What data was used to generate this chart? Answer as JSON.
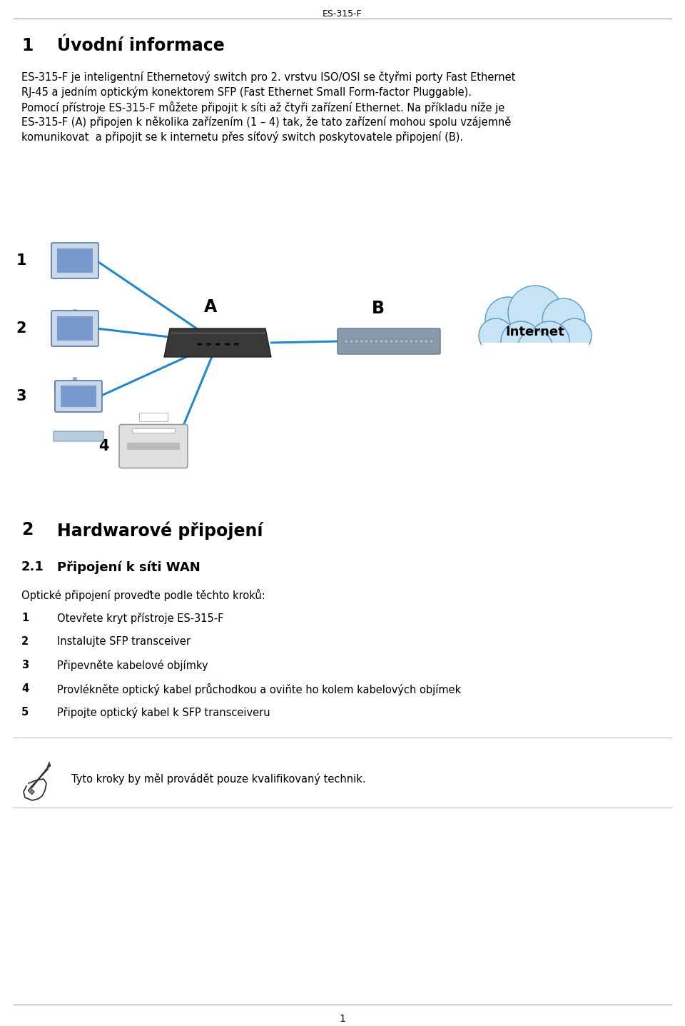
{
  "bg_color": "#ffffff",
  "header_text": "ES-315-F",
  "section1_num": "1",
  "section1_title": "Úvodní informace",
  "para1_lines": [
    "ES-315-F je inteligentní Ethernetový switch pro 2. vrstvu ISO/OSI se čtyřmi porty Fast Ethernet",
    "RJ-45 a jedním optickým konektorem SFP (Fast Ethernet Small Form-factor Pluggable).",
    "Pomocí přístroje ES-315-F můžete připojit k síti až čtyři zařízení Ethernet. Na příkladu níže je",
    "ES-315-F (A) připojen k několika zařízením (1 – 4) tak, že tato zařízení mohou spolu vzájemně",
    "komunikovat  a připojit se k internetu přes síťový switch poskytovatele připojení (B)."
  ],
  "section2_num": "2",
  "section2_title": "Hardwarové připojení",
  "section21_num": "2.1",
  "section21_title": "Připojení k síti WAN",
  "optical_intro": "Optické připojení proveďte podle těchto kroků:",
  "steps": [
    {
      "num": "1",
      "text": "Otevřete kryt přístroje ES-315-F"
    },
    {
      "num": "2",
      "text": "Instalujte SFP transceiver"
    },
    {
      "num": "3",
      "text": "Připevněte kabelové objímky"
    },
    {
      "num": "4",
      "text": "Provlékněte optický kabel průchodkou a oviňte ho kolem kabelových objímek"
    },
    {
      "num": "5",
      "text": "Připojte optický kabel k SFP transceiveru"
    }
  ],
  "note_text": "Tyto kroky by měl provádět pouze kvalifikovaný technik.",
  "page_num": "1",
  "line_color": "#999999",
  "text_color": "#000000",
  "blue_line_color": "#2288cc",
  "switch_color": "#444444",
  "cloud_color": "#c8e4f4",
  "cloud_edge": "#5599cc",
  "isp_switch_color": "#7799bb",
  "device_blue": "#6688bb",
  "device_light": "#aabbcc"
}
